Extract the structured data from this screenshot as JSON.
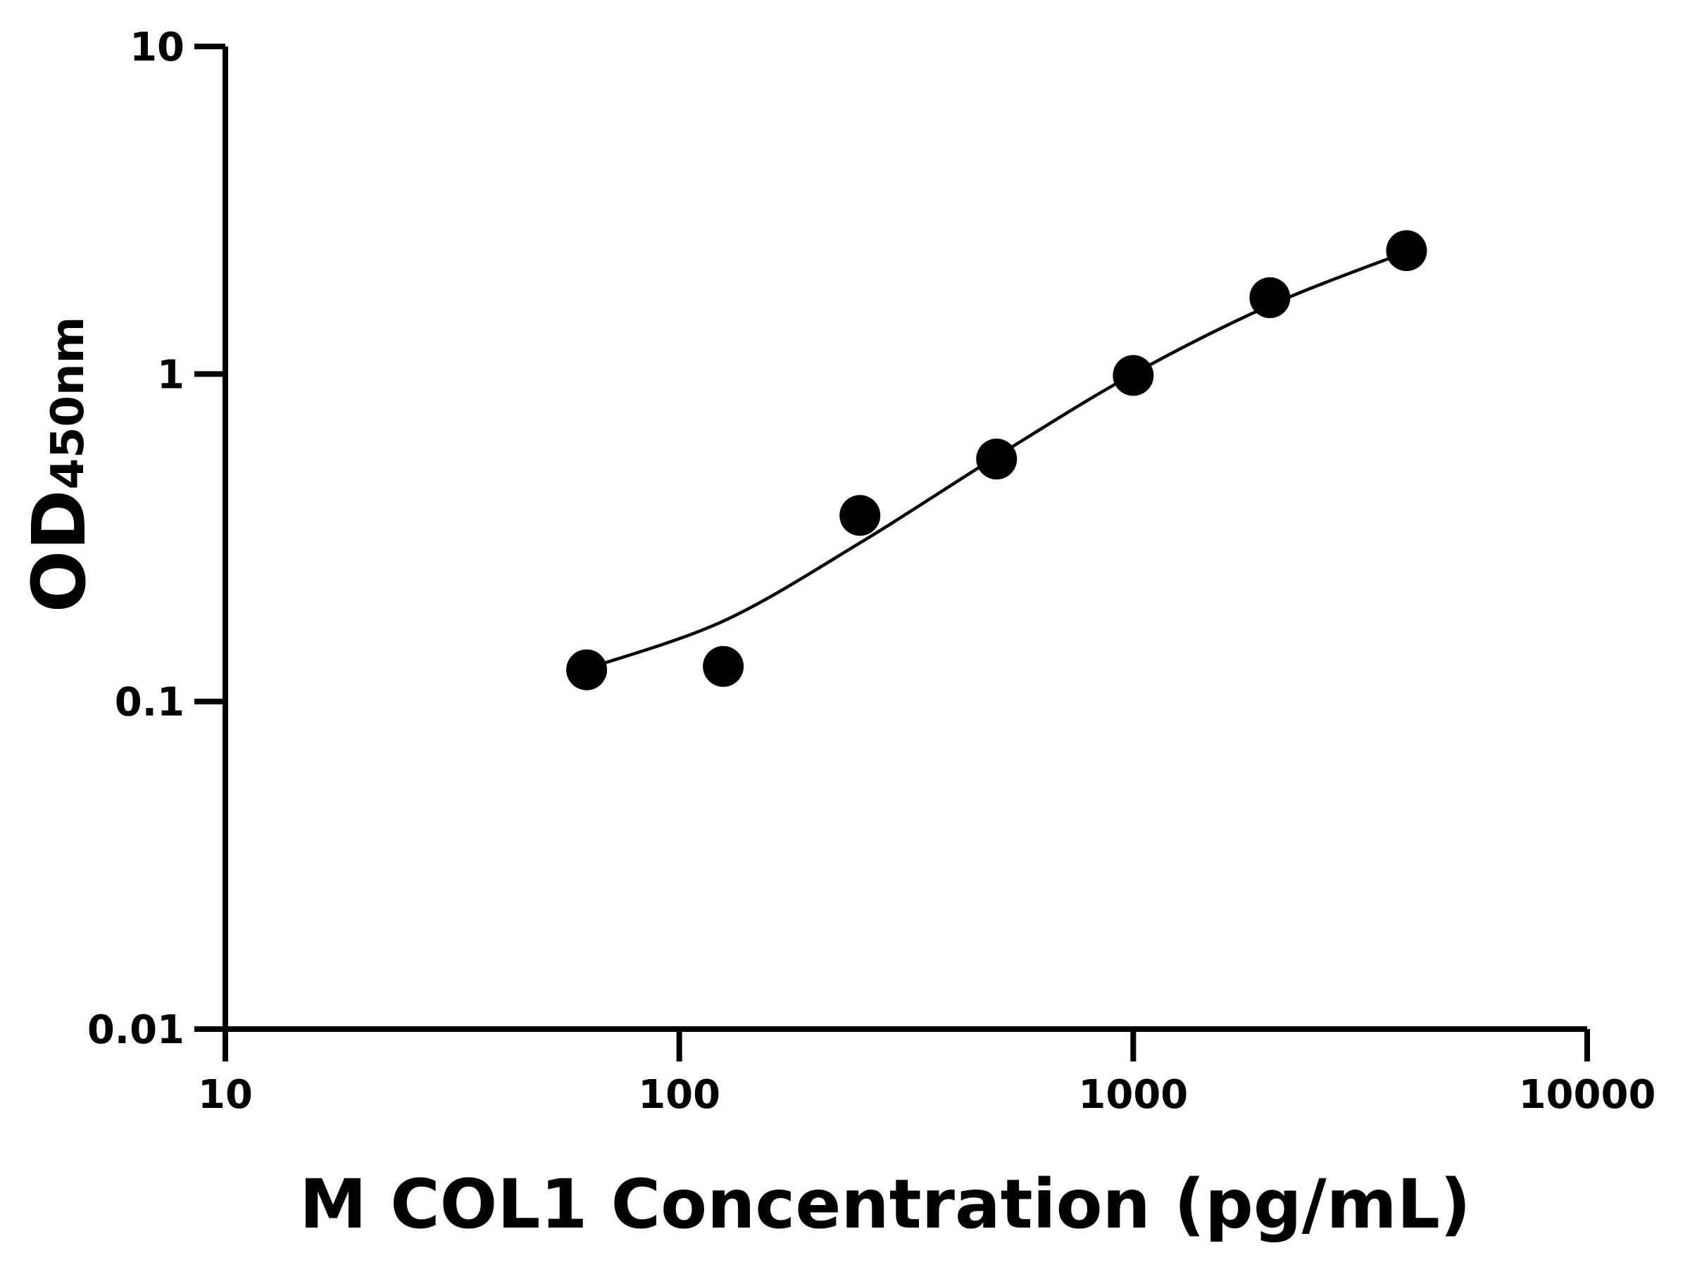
{
  "chart_data": {
    "type": "scatter",
    "title": "",
    "xlabel": "M COL1 Concentration (pg/mL)",
    "ylabel_main": "OD",
    "ylabel_sub": "450nm",
    "x_scale": "log",
    "y_scale": "log",
    "xlim": [
      10,
      10000
    ],
    "ylim": [
      0.01,
      10
    ],
    "x_ticks": [
      "10",
      "100",
      "1000",
      "10000"
    ],
    "y_ticks": [
      "0.01",
      "0.1",
      "1",
      "10"
    ],
    "grid": false,
    "legend": "none",
    "series": [
      {
        "points": [
          {
            "x": 62.5,
            "y": 0.125
          },
          {
            "x": 125,
            "y": 0.128
          },
          {
            "x": 250,
            "y": 0.37
          },
          {
            "x": 500,
            "y": 0.55
          },
          {
            "x": 1000,
            "y": 0.99
          },
          {
            "x": 2000,
            "y": 1.71
          },
          {
            "x": 4000,
            "y": 2.38
          }
        ],
        "color": "#000000"
      }
    ],
    "fit_curve": {
      "color": "#000000",
      "points": [
        {
          "x": 62.5,
          "y": 0.126
        },
        {
          "x": 125,
          "y": 0.176
        },
        {
          "x": 250,
          "y": 0.305
        },
        {
          "x": 500,
          "y": 0.56
        },
        {
          "x": 1000,
          "y": 1.0
        },
        {
          "x": 2000,
          "y": 1.62
        },
        {
          "x": 4000,
          "y": 2.36
        }
      ]
    }
  }
}
